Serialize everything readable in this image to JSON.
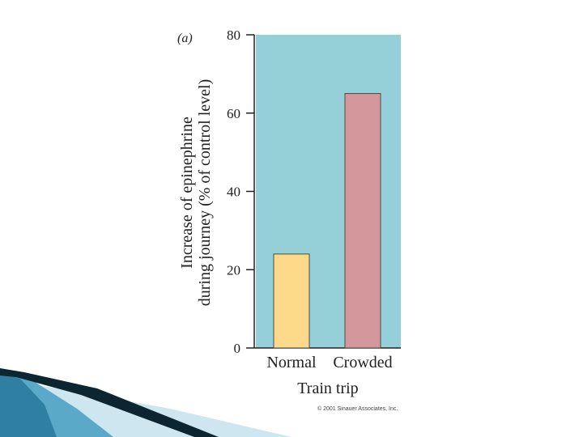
{
  "panel_label": "(a)",
  "copyright": "© 2001 Sinauer Associates, Inc.",
  "colors": {
    "plot_background": "#95d0d9",
    "normal_bar": "#fdd98a",
    "crowded_bar": "#d4979c",
    "decor_dark": "#0b2630",
    "decor_light": "#cde6f0"
  },
  "chart_data": {
    "type": "bar",
    "categories": [
      "Normal",
      "Crowded"
    ],
    "values": [
      24,
      65
    ],
    "xlabel": "Train trip",
    "ylabel_lines": [
      "Increase of epinephrine",
      "during journey (% of control level)"
    ],
    "ylim": [
      0,
      80
    ],
    "yticks": [
      "0",
      "20",
      "40",
      "60",
      "80"
    ],
    "grid": false,
    "legend": "none"
  }
}
